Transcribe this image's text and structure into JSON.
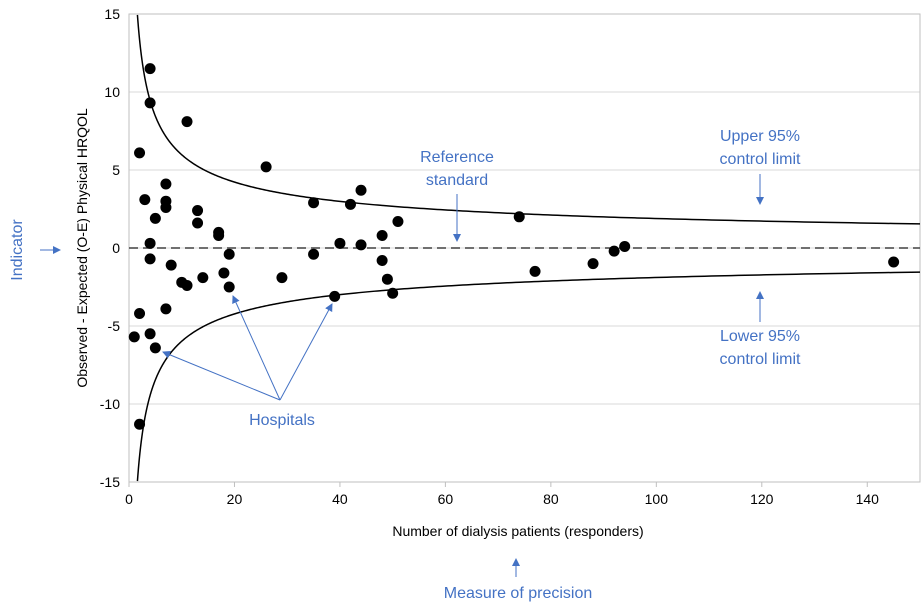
{
  "chart_data": {
    "type": "scatter",
    "title": "",
    "xlabel": "Number of dialysis patients (responders)",
    "ylabel": "Observed - Expected (O-E) Physical HRQOL",
    "xlim": [
      0,
      150
    ],
    "ylim": [
      -15,
      15
    ],
    "x_ticks": [
      0,
      20,
      40,
      60,
      80,
      100,
      120,
      140
    ],
    "y_ticks": [
      -15,
      -10,
      -5,
      0,
      5,
      10,
      15
    ],
    "grid": "horizontal",
    "reference_line": {
      "y": 0,
      "style": "dashed"
    },
    "control_limits": {
      "coefficient": 18.9,
      "x_start": 1.6,
      "x_end": 150
    },
    "points": [
      {
        "x": 1,
        "y": -5.7
      },
      {
        "x": 2,
        "y": 6.1
      },
      {
        "x": 2,
        "y": -4.2
      },
      {
        "x": 2,
        "y": -11.3
      },
      {
        "x": 3,
        "y": 3.1
      },
      {
        "x": 4,
        "y": 11.5
      },
      {
        "x": 4,
        "y": 9.3
      },
      {
        "x": 4,
        "y": 0.3
      },
      {
        "x": 4,
        "y": -0.7
      },
      {
        "x": 4,
        "y": -5.5
      },
      {
        "x": 5,
        "y": 1.9
      },
      {
        "x": 5,
        "y": -6.4
      },
      {
        "x": 7,
        "y": 4.1
      },
      {
        "x": 7,
        "y": 3.0
      },
      {
        "x": 7,
        "y": 2.6
      },
      {
        "x": 7,
        "y": -3.9
      },
      {
        "x": 8,
        "y": -1.1
      },
      {
        "x": 10,
        "y": -2.2
      },
      {
        "x": 11,
        "y": 8.1
      },
      {
        "x": 11,
        "y": -2.4
      },
      {
        "x": 13,
        "y": 2.4
      },
      {
        "x": 13,
        "y": 1.6
      },
      {
        "x": 14,
        "y": -1.9
      },
      {
        "x": 17,
        "y": 1.0
      },
      {
        "x": 17,
        "y": 0.8
      },
      {
        "x": 18,
        "y": -1.6
      },
      {
        "x": 19,
        "y": -0.4
      },
      {
        "x": 19,
        "y": -2.5
      },
      {
        "x": 26,
        "y": 5.2
      },
      {
        "x": 29,
        "y": -1.9
      },
      {
        "x": 35,
        "y": 2.9
      },
      {
        "x": 35,
        "y": -0.4
      },
      {
        "x": 39,
        "y": -3.1
      },
      {
        "x": 40,
        "y": 0.3
      },
      {
        "x": 42,
        "y": 2.8
      },
      {
        "x": 44,
        "y": 3.7
      },
      {
        "x": 44,
        "y": 0.2
      },
      {
        "x": 48,
        "y": 0.8
      },
      {
        "x": 48,
        "y": -0.8
      },
      {
        "x": 49,
        "y": -2.0
      },
      {
        "x": 50,
        "y": -2.9
      },
      {
        "x": 51,
        "y": 1.7
      },
      {
        "x": 74,
        "y": 2.0
      },
      {
        "x": 77,
        "y": -1.5
      },
      {
        "x": 88,
        "y": -1.0
      },
      {
        "x": 92,
        "y": -0.2
      },
      {
        "x": 94,
        "y": 0.1
      },
      {
        "x": 145,
        "y": -0.9
      }
    ]
  },
  "annotations": {
    "indicator": "Indicator",
    "measure_of_precision": "Measure of precision",
    "reference_standard_line1": "Reference",
    "reference_standard_line2": "standard",
    "upper_limit_line1": "Upper 95%",
    "upper_limit_line2": "control limit",
    "lower_limit_line1": "Lower 95%",
    "lower_limit_line2": "control limit",
    "hospitals": "Hospitals"
  },
  "colors": {
    "annotation": "#4472c4",
    "points": "#000000",
    "gridline": "#d9d9d9"
  }
}
